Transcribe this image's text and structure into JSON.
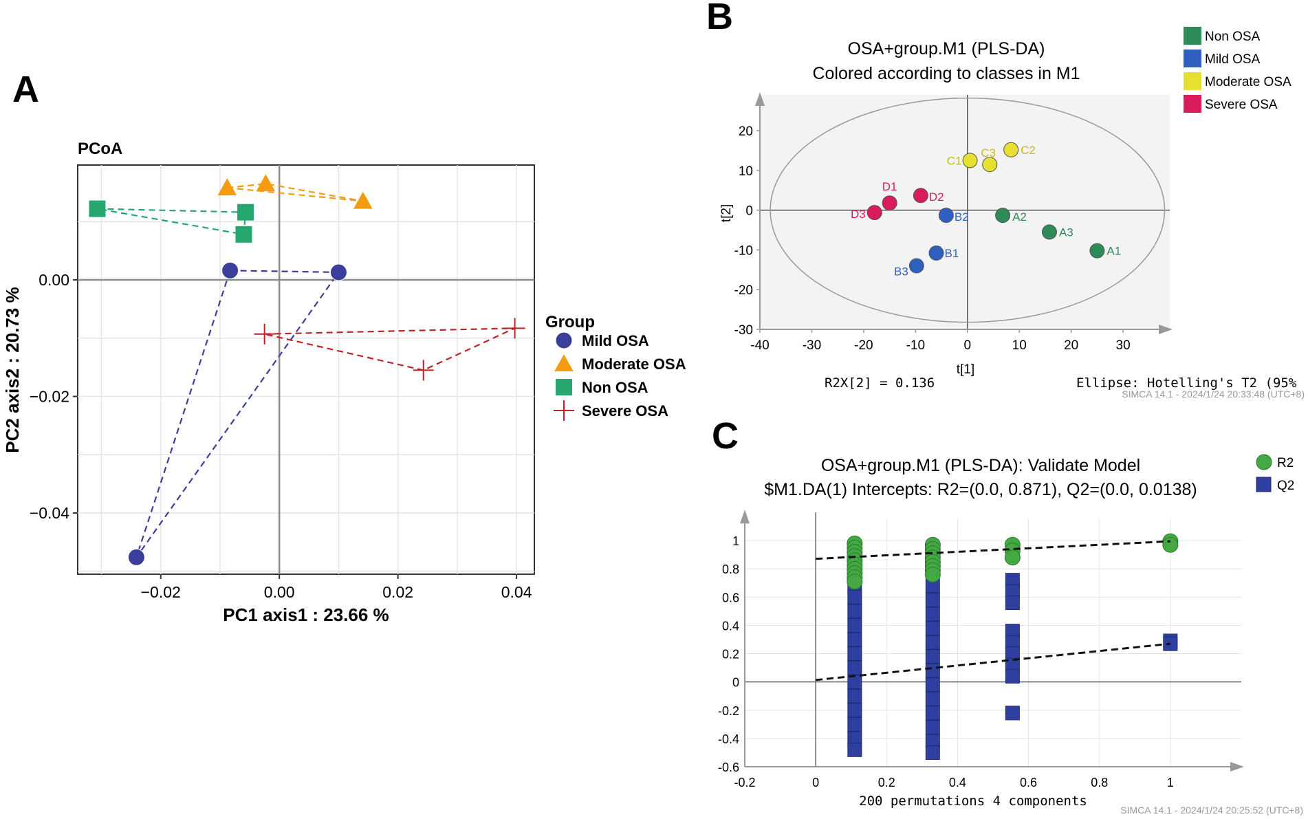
{
  "colors": {
    "mild": "#3b3f9b",
    "moderate": "#f39c12",
    "non": "#27a770",
    "severe": "#c0222a",
    "b_non": "#2e8b57",
    "b_mild": "#2f5fbf",
    "b_mod": "#e8e030",
    "b_sev": "#d81b5a",
    "r2": "#44a944",
    "q2": "#2f3f9f"
  },
  "chart_data": [
    {
      "panel": "A",
      "type": "scatter",
      "title": "PCoA",
      "xlabel": "PC1 axis1 : 23.66 %",
      "ylabel": "PC2 axis2 : 20.73 %",
      "xlim": [
        -0.034,
        0.043
      ],
      "ylim": [
        -0.0505,
        0.0197
      ],
      "xticks": [
        -0.02,
        0.0,
        0.02,
        0.04
      ],
      "xticklabels": [
        "−0.02",
        "0.00",
        "0.02",
        "0.04"
      ],
      "yticks": [
        0.0,
        -0.02,
        -0.04
      ],
      "yticklabels": [
        "0.00",
        "−0.02",
        "−0.04"
      ],
      "legend_title": "Group",
      "series": [
        {
          "name": "Mild OSA",
          "marker": "circle",
          "color_key": "mild",
          "points": [
            [
              -0.0083,
              0.0016
            ],
            [
              0.01,
              0.0013
            ],
            [
              -0.0241,
              -0.0476
            ]
          ]
        },
        {
          "name": "Moderate OSA",
          "marker": "triangle",
          "color_key": "moderate",
          "points": [
            [
              -0.0088,
              0.0158
            ],
            [
              -0.0023,
              0.0165
            ],
            [
              0.0141,
              0.0135
            ]
          ]
        },
        {
          "name": "Non OSA",
          "marker": "square",
          "color_key": "non",
          "points": [
            [
              -0.0307,
              0.0122
            ],
            [
              -0.0057,
              0.0116
            ],
            [
              -0.006,
              0.0078
            ]
          ]
        },
        {
          "name": "Severe OSA",
          "marker": "cross",
          "color_key": "severe",
          "points": [
            [
              -0.0025,
              -0.0093
            ],
            [
              0.0397,
              -0.0083
            ],
            [
              0.0243,
              -0.0155
            ]
          ]
        }
      ]
    },
    {
      "panel": "B",
      "type": "scatter",
      "title": "OSA+group.M1 (PLS-DA)",
      "subtitle": "Colored according to classes in M1",
      "xlabel": "t[1]",
      "ylabel": "t[2]",
      "xlim": [
        -40,
        39
      ],
      "ylim": [
        -30,
        29
      ],
      "xticks": [
        -40,
        -30,
        -20,
        -10,
        0,
        10,
        20,
        30
      ],
      "yticks": [
        20,
        10,
        0,
        -10,
        -20,
        -30
      ],
      "footer_left": "R2X[2] = 0.136",
      "footer_right": "Ellipse: Hotelling's T2 (95%",
      "stamp": "SIMCA 14.1 - 2024/1/24 20:33:48 (UTC+8)",
      "series": [
        {
          "name": "Non OSA",
          "color_key": "b_non",
          "points": [
            {
              "x": 25.0,
              "y": -10.2,
              "label": "A1"
            },
            {
              "x": 6.8,
              "y": -1.3,
              "label": "A2"
            },
            {
              "x": 15.8,
              "y": -5.5,
              "label": "A3"
            }
          ]
        },
        {
          "name": "Mild OSA",
          "color_key": "b_mild",
          "points": [
            {
              "x": -6.0,
              "y": -10.8,
              "label": "B1"
            },
            {
              "x": -4.1,
              "y": -1.3,
              "label": "B2"
            },
            {
              "x": -9.8,
              "y": -14.0,
              "label": "B3"
            }
          ]
        },
        {
          "name": "Moderate OSA",
          "color_key": "b_mod",
          "points": [
            {
              "x": 0.5,
              "y": 12.5,
              "label": "C1"
            },
            {
              "x": 8.4,
              "y": 15.2,
              "label": "C2"
            },
            {
              "x": 4.3,
              "y": 11.5,
              "label": "C3"
            }
          ]
        },
        {
          "name": "Severe OSA",
          "color_key": "b_sev",
          "points": [
            {
              "x": -15.0,
              "y": 1.8,
              "label": "D1"
            },
            {
              "x": -9.0,
              "y": 3.7,
              "label": "D2"
            },
            {
              "x": -17.9,
              "y": -0.6,
              "label": "D3"
            }
          ]
        }
      ]
    },
    {
      "panel": "C",
      "type": "scatter",
      "title": "OSA+group.M1 (PLS-DA): Validate Model",
      "subtitle": "$M1.DA(1) Intercepts: R2=(0.0, 0.871), Q2=(0.0, 0.0138)",
      "xlabel": "200 permutations 4 components",
      "xlim": [
        -0.2,
        1.2
      ],
      "ylim": [
        -0.6,
        1.2
      ],
      "xticks": [
        -0.2,
        0,
        0.2,
        0.4,
        0.6,
        0.8,
        1
      ],
      "xticklabels": [
        "-0.2",
        "0",
        "0.2",
        "0.4",
        "0.6",
        "0.8",
        "1"
      ],
      "yticks": [
        1,
        0.8,
        0.6,
        0.4,
        0.2,
        0,
        -0.2,
        -0.4,
        -0.6
      ],
      "yticklabels": [
        "1",
        "0.8",
        "0.6",
        "0.4",
        "0.2",
        "0",
        "-0.2",
        "-0.4",
        "-0.6"
      ],
      "stamp": "SIMCA 14.1 - 2024/1/24 20:25:52 (UTC+8)",
      "series": [
        {
          "name": "R2",
          "marker": "circle",
          "color_key": "r2",
          "points": [
            [
              0.11,
              0.98
            ],
            [
              0.11,
              0.95
            ],
            [
              0.11,
              0.92
            ],
            [
              0.11,
              0.89
            ],
            [
              0.11,
              0.86
            ],
            [
              0.11,
              0.83
            ],
            [
              0.11,
              0.8
            ],
            [
              0.11,
              0.77
            ],
            [
              0.11,
              0.74
            ],
            [
              0.11,
              0.71
            ],
            [
              0.33,
              0.97
            ],
            [
              0.33,
              0.94
            ],
            [
              0.33,
              0.91
            ],
            [
              0.33,
              0.88
            ],
            [
              0.33,
              0.85
            ],
            [
              0.33,
              0.82
            ],
            [
              0.33,
              0.79
            ],
            [
              0.33,
              0.76
            ],
            [
              0.555,
              0.97
            ],
            [
              0.555,
              0.93
            ],
            [
              0.555,
              0.88
            ],
            [
              1,
              0.995
            ],
            [
              1,
              0.97
            ]
          ]
        },
        {
          "name": "Q2",
          "marker": "square",
          "color_key": "q2",
          "points": [
            [
              0.11,
              0.67
            ],
            [
              0.11,
              0.6
            ],
            [
              0.11,
              0.5
            ],
            [
              0.11,
              0.4
            ],
            [
              0.11,
              0.3
            ],
            [
              0.11,
              0.2
            ],
            [
              0.11,
              0.1
            ],
            [
              0.11,
              0.0
            ],
            [
              0.11,
              -0.1
            ],
            [
              0.11,
              -0.2
            ],
            [
              0.11,
              -0.3
            ],
            [
              0.11,
              -0.4
            ],
            [
              0.11,
              -0.48
            ],
            [
              0.33,
              0.68
            ],
            [
              0.33,
              0.58
            ],
            [
              0.33,
              0.48
            ],
            [
              0.33,
              0.38
            ],
            [
              0.33,
              0.28
            ],
            [
              0.33,
              0.18
            ],
            [
              0.33,
              0.08
            ],
            [
              0.33,
              -0.02
            ],
            [
              0.33,
              -0.12
            ],
            [
              0.33,
              -0.22
            ],
            [
              0.33,
              -0.32
            ],
            [
              0.33,
              -0.42
            ],
            [
              0.33,
              -0.5
            ],
            [
              0.555,
              0.72
            ],
            [
              0.555,
              0.64
            ],
            [
              0.555,
              0.56
            ],
            [
              0.555,
              0.36
            ],
            [
              0.555,
              0.28
            ],
            [
              0.555,
              0.2
            ],
            [
              0.555,
              0.12
            ],
            [
              0.555,
              0.04
            ],
            [
              0.555,
              -0.22
            ],
            [
              1,
              0.29
            ],
            [
              1,
              0.27
            ]
          ]
        }
      ],
      "regression": [
        {
          "name": "R2",
          "points": [
            [
              0,
              0.871
            ],
            [
              1,
              0.995
            ]
          ]
        },
        {
          "name": "Q2",
          "points": [
            [
              0,
              0.0138
            ],
            [
              1,
              0.27
            ]
          ]
        }
      ]
    }
  ],
  "labels": {
    "A": "A",
    "B": "B",
    "C": "C"
  }
}
